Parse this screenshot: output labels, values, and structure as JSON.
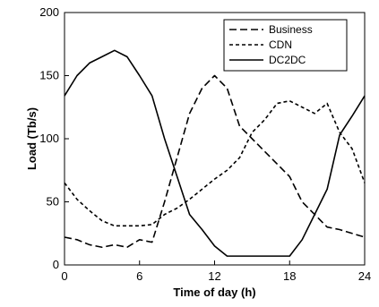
{
  "chart_data": {
    "type": "line",
    "title": "",
    "xlabel": "Time of day (h)",
    "ylabel": "Load (Tb/s)",
    "xlim": [
      0,
      24
    ],
    "ylim": [
      0,
      200
    ],
    "x_ticks": [
      "0",
      "6",
      "12",
      "18",
      "24"
    ],
    "y_ticks": [
      "0",
      "50",
      "100",
      "150",
      "200"
    ],
    "grid": false,
    "legend_position": "top-right",
    "x": [
      0,
      1,
      2,
      3,
      4,
      5,
      6,
      7,
      8,
      9,
      10,
      11,
      12,
      13,
      14,
      15,
      16,
      17,
      18,
      19,
      20,
      21,
      22,
      23,
      24
    ],
    "series": [
      {
        "name": "Business",
        "dash": "long-dash",
        "color": "#000000",
        "values": [
          22,
          20,
          16,
          14,
          16,
          14,
          20,
          18,
          50,
          85,
          120,
          140,
          150,
          140,
          110,
          100,
          90,
          80,
          70,
          50,
          40,
          30,
          28,
          25,
          22
        ]
      },
      {
        "name": "CDN",
        "dash": "short-dash",
        "color": "#000000",
        "values": [
          65,
          52,
          43,
          35,
          31,
          31,
          31,
          32,
          40,
          45,
          52,
          60,
          68,
          75,
          85,
          105,
          115,
          128,
          130,
          125,
          120,
          128,
          105,
          92,
          65
        ]
      },
      {
        "name": "DC2DC",
        "dash": "solid",
        "color": "#000000",
        "values": [
          134,
          150,
          160,
          165,
          170,
          165,
          150,
          134,
          100,
          70,
          40,
          28,
          15,
          7,
          7,
          7,
          7,
          7,
          7,
          20,
          40,
          60,
          103,
          118,
          134
        ]
      }
    ]
  }
}
